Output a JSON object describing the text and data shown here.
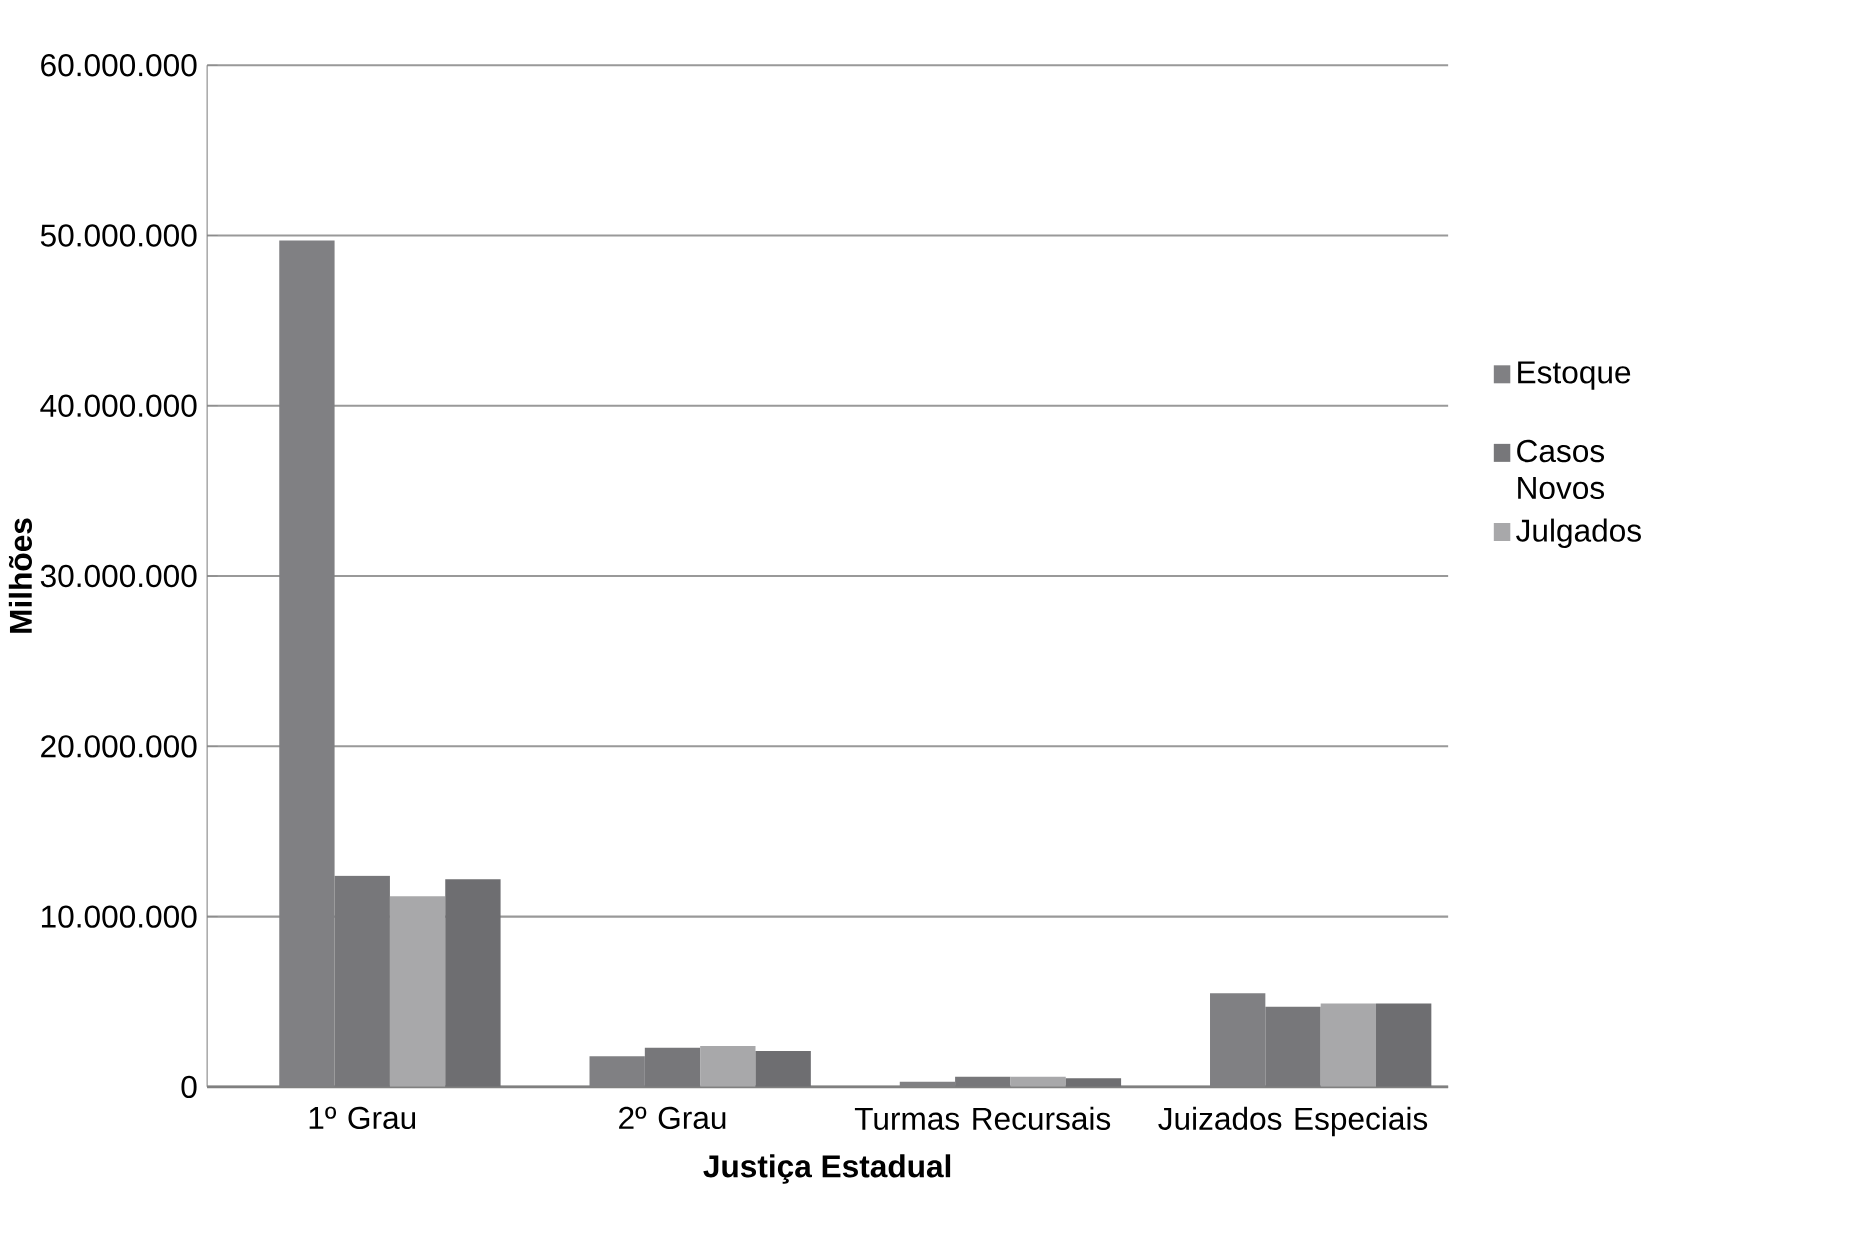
{
  "chart_data": {
    "type": "bar",
    "xlabel": "Justiça Estadual",
    "ylabel": "Milhões",
    "categories": [
      "1º Grau",
      "2º Grau",
      "Turmas Recursais",
      "Juizados Especiais"
    ],
    "series": [
      {
        "name": "Estoque",
        "color": "#808083",
        "values": [
          49700000,
          1800000,
          300000,
          5500000
        ]
      },
      {
        "name": "Casos Novos",
        "color": "#77777a",
        "values": [
          12400000,
          2300000,
          600000,
          4700000
        ]
      },
      {
        "name": "Julgados",
        "color": "#a8a8aa",
        "values": [
          11200000,
          2400000,
          600000,
          4900000
        ]
      },
      {
        "color": "#6e6e71",
        "values": [
          12200000,
          2100000,
          500000,
          4900000
        ]
      }
    ],
    "ylim": [
      0,
      60000000
    ],
    "yticks": [
      0,
      {
        "value": 10000000,
        "label": "10.000.000"
      },
      {
        "value": 20000000,
        "label": "20.000.000"
      },
      {
        "value": 30000000,
        "label": "30.000.000"
      },
      {
        "value": 40000000,
        "label": "40.000.000"
      },
      {
        "value": 50000000,
        "label": "50.000.000"
      },
      {
        "value": 60000000,
        "label": "60.000.000"
      }
    ],
    "grid": true,
    "legend": "right"
  }
}
